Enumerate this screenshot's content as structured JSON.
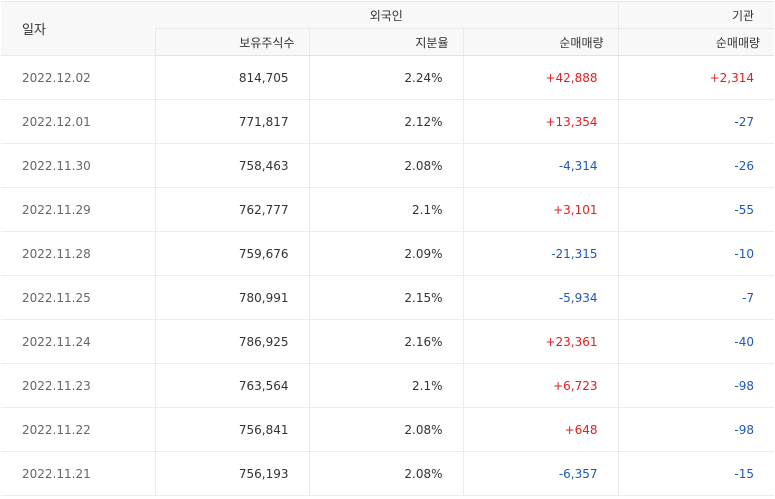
{
  "header": {
    "date_label": "일자",
    "foreign_label": "외국인",
    "institution_label": "기관",
    "holdings_label": "보유주식수",
    "ratio_label": "지분율",
    "foreign_net_label": "순매매량",
    "institution_net_label": "순매매량"
  },
  "rows": [
    {
      "date": "2022.12.02",
      "holdings": "814,705",
      "ratio": "2.24%",
      "foreign_net": "+42,888",
      "foreign_dir": "up",
      "inst_net": "+2,314",
      "inst_dir": "up"
    },
    {
      "date": "2022.12.01",
      "holdings": "771,817",
      "ratio": "2.12%",
      "foreign_net": "+13,354",
      "foreign_dir": "up",
      "inst_net": "-27",
      "inst_dir": "down"
    },
    {
      "date": "2022.11.30",
      "holdings": "758,463",
      "ratio": "2.08%",
      "foreign_net": "-4,314",
      "foreign_dir": "down",
      "inst_net": "-26",
      "inst_dir": "down"
    },
    {
      "date": "2022.11.29",
      "holdings": "762,777",
      "ratio": "2.1%",
      "foreign_net": "+3,101",
      "foreign_dir": "up",
      "inst_net": "-55",
      "inst_dir": "down"
    },
    {
      "date": "2022.11.28",
      "holdings": "759,676",
      "ratio": "2.09%",
      "foreign_net": "-21,315",
      "foreign_dir": "down",
      "inst_net": "-10",
      "inst_dir": "down"
    },
    {
      "date": "2022.11.25",
      "holdings": "780,991",
      "ratio": "2.15%",
      "foreign_net": "-5,934",
      "foreign_dir": "down",
      "inst_net": "-7",
      "inst_dir": "down"
    },
    {
      "date": "2022.11.24",
      "holdings": "786,925",
      "ratio": "2.16%",
      "foreign_net": "+23,361",
      "foreign_dir": "up",
      "inst_net": "-40",
      "inst_dir": "down"
    },
    {
      "date": "2022.11.23",
      "holdings": "763,564",
      "ratio": "2.1%",
      "foreign_net": "+6,723",
      "foreign_dir": "up",
      "inst_net": "-98",
      "inst_dir": "down"
    },
    {
      "date": "2022.11.22",
      "holdings": "756,841",
      "ratio": "2.08%",
      "foreign_net": "+648",
      "foreign_dir": "up",
      "inst_net": "-98",
      "inst_dir": "down"
    },
    {
      "date": "2022.11.21",
      "holdings": "756,193",
      "ratio": "2.08%",
      "foreign_net": "-6,357",
      "foreign_dir": "down",
      "inst_net": "-15",
      "inst_dir": "down"
    }
  ],
  "colors": {
    "up": "#e02020",
    "down": "#1e58b6",
    "header_bg": "#f8f8f8"
  }
}
